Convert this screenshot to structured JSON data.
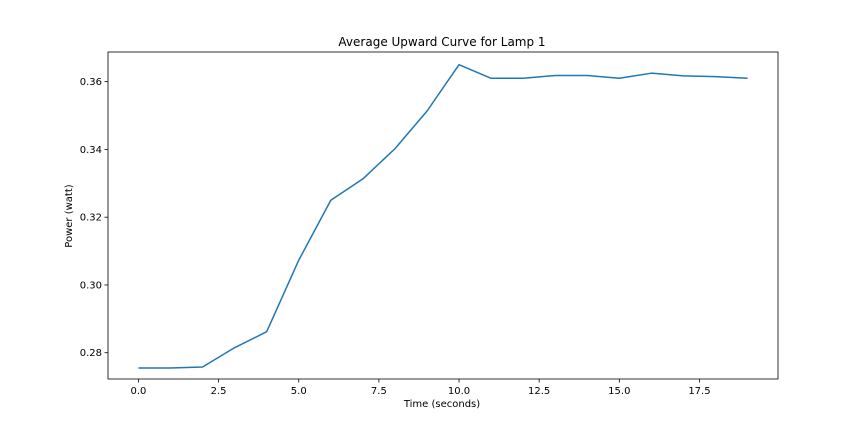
{
  "chart_data": {
    "type": "line",
    "title": "Average Upward Curve for Lamp 1",
    "xlabel": "Time (seconds)",
    "ylabel": "Power (watt)",
    "xlim": [
      -0.95,
      19.95
    ],
    "ylim": [
      0.27225,
      0.36875
    ],
    "grid": false,
    "legend": "none",
    "x_ticks": [
      0.0,
      2.5,
      5.0,
      7.5,
      10.0,
      12.5,
      15.0,
      17.5
    ],
    "x_tick_labels": [
      "0.0",
      "2.5",
      "5.0",
      "7.5",
      "10.0",
      "12.5",
      "15.0",
      "17.5"
    ],
    "y_ticks": [
      0.28,
      0.3,
      0.32,
      0.34,
      0.36
    ],
    "y_tick_labels": [
      "0.28",
      "0.30",
      "0.32",
      "0.34",
      "0.36"
    ],
    "series": [
      {
        "name": "Lamp 1",
        "color": "#1f77b4",
        "x": [
          0,
          1,
          2,
          3,
          4,
          5,
          6,
          7,
          8,
          9,
          10,
          11,
          12,
          13,
          14,
          15,
          16,
          17,
          18,
          19
        ],
        "y": [
          0.2755,
          0.2755,
          0.2758,
          0.2815,
          0.2862,
          0.3073,
          0.325,
          0.3313,
          0.3402,
          0.3513,
          0.365,
          0.361,
          0.361,
          0.3618,
          0.3618,
          0.361,
          0.3625,
          0.3617,
          0.3615,
          0.361
        ]
      }
    ]
  }
}
